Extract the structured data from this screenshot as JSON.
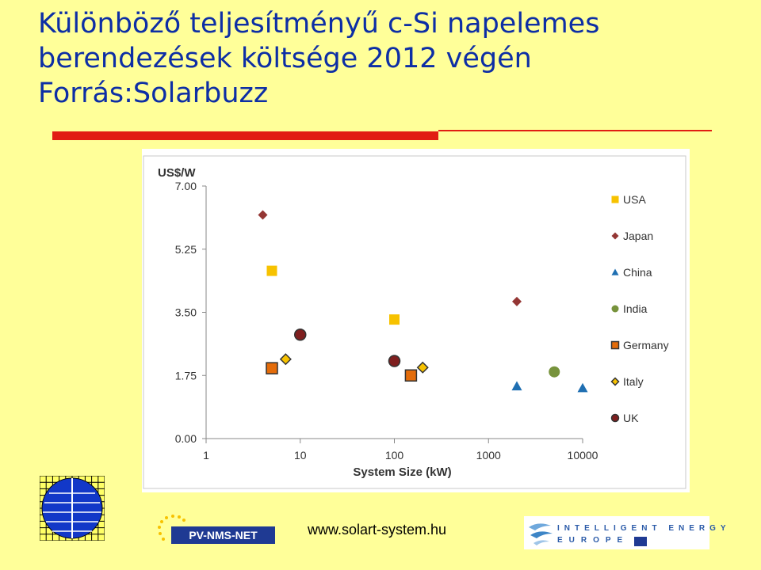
{
  "slide": {
    "title_line1": "Különböző teljesítményű c-Si napelemes",
    "title_line2": "berendezések költsége 2012 végén",
    "title_line3": "Forrás:Solarbuzz"
  },
  "footer": {
    "pvnms_label": "PV-NMS-NET",
    "website": "www.solart-system.hu",
    "iee_line1": "INTELLIGENT ENERGY",
    "iee_line2": "EUROPE"
  },
  "colors": {
    "background": "#ffff99",
    "title": "#0d2ea5",
    "accent_bar": "#e11d13"
  },
  "chart_data": {
    "type": "scatter",
    "ylabel": "US$/W",
    "xlabel": "System Size (kW)",
    "xscale": "log",
    "xlim": [
      1,
      10000
    ],
    "ylim": [
      0,
      7
    ],
    "x_ticks": [
      "1",
      "10",
      "100",
      "1000",
      "10000"
    ],
    "x_tick_values": [
      1,
      10,
      100,
      1000,
      10000
    ],
    "y_ticks": [
      "7.00",
      "5.25",
      "3.50",
      "1.75",
      "0.00"
    ],
    "y_tick_values": [
      7,
      5.25,
      3.5,
      1.75,
      0
    ],
    "legend_position": "right",
    "series": [
      {
        "name": "USA",
        "marker": "square",
        "color": "#f7c200",
        "points": [
          [
            5,
            4.65
          ],
          [
            100,
            3.3
          ]
        ]
      },
      {
        "name": "Japan",
        "marker": "diamond",
        "color": "#943634",
        "points": [
          [
            4,
            6.2
          ],
          [
            2000,
            3.8
          ]
        ]
      },
      {
        "name": "China",
        "marker": "triangle",
        "color": "#1f6fb2",
        "points": [
          [
            2000,
            1.45
          ],
          [
            10000,
            1.4
          ]
        ]
      },
      {
        "name": "India",
        "marker": "circle",
        "color": "#77933c",
        "points": [
          [
            5000,
            1.85
          ]
        ]
      },
      {
        "name": "Germany",
        "marker": "square-outline",
        "color": "#e46c0a",
        "points": [
          [
            5,
            1.95
          ],
          [
            150,
            1.75
          ]
        ]
      },
      {
        "name": "Italy",
        "marker": "diamond-outline",
        "color": "#f7c200",
        "points": [
          [
            7,
            2.2
          ],
          [
            200,
            1.97
          ]
        ]
      },
      {
        "name": "UK",
        "marker": "circle-outline",
        "color": "#7f1f1f",
        "points": [
          [
            10,
            2.88
          ],
          [
            100,
            2.15
          ]
        ]
      }
    ]
  }
}
